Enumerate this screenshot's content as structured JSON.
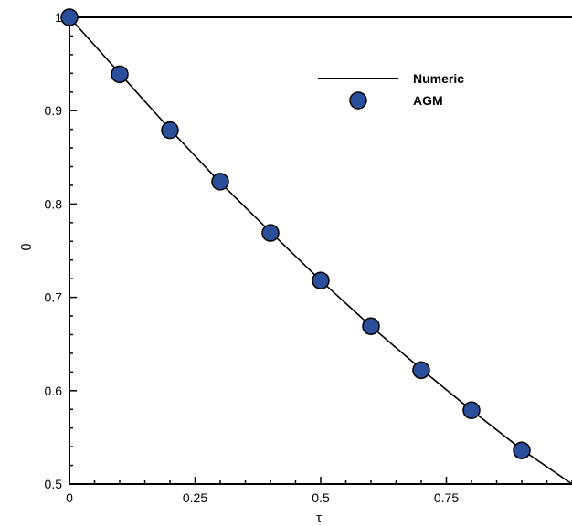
{
  "chart_data": {
    "type": "line",
    "xlabel": "τ",
    "ylabel": "θ",
    "xlim": [
      0,
      1.0
    ],
    "ylim": [
      0.5,
      1.0
    ],
    "x_ticks": [
      {
        "value": 0,
        "label": "0"
      },
      {
        "value": 0.25,
        "label": "0.25"
      },
      {
        "value": 0.5,
        "label": "0.5"
      },
      {
        "value": 0.75,
        "label": "0.75"
      }
    ],
    "y_ticks": [
      {
        "value": 0.5,
        "label": "0.5"
      },
      {
        "value": 0.6,
        "label": "0.6"
      },
      {
        "value": 0.7,
        "label": "0.7"
      },
      {
        "value": 0.8,
        "label": "0.8"
      },
      {
        "value": 0.9,
        "label": "0.9"
      },
      {
        "value": 1.0,
        "label": "1"
      }
    ],
    "legend_position": "top-right",
    "grid": false,
    "series": [
      {
        "name": "Numeric",
        "style": "line",
        "color": "#000000",
        "x": [
          0,
          0.1,
          0.2,
          0.3,
          0.4,
          0.5,
          0.6,
          0.7,
          0.8,
          0.9,
          1.0
        ],
        "y": [
          1.0,
          0.94,
          0.88,
          0.823,
          0.77,
          0.718,
          0.669,
          0.623,
          0.579,
          0.537,
          0.5
        ]
      },
      {
        "name": "AGM",
        "style": "marker",
        "color": "#2a4f9a",
        "x": [
          0,
          0.1,
          0.2,
          0.3,
          0.4,
          0.5,
          0.6,
          0.7,
          0.8,
          0.9
        ],
        "y": [
          1.0,
          0.939,
          0.879,
          0.824,
          0.769,
          0.718,
          0.669,
          0.622,
          0.579,
          0.536
        ]
      }
    ]
  }
}
